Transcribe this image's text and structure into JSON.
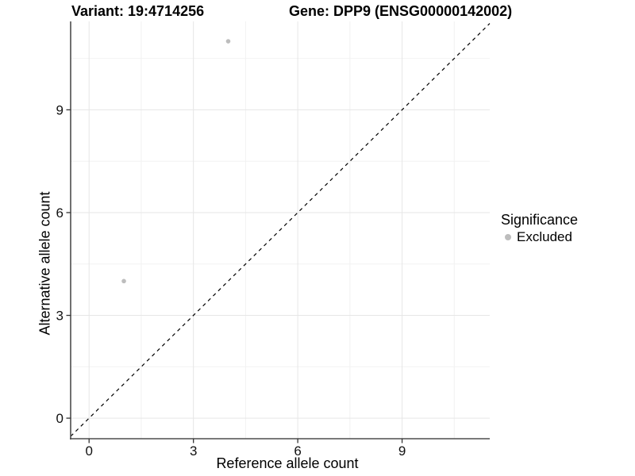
{
  "chart_data": {
    "type": "scatter",
    "titles": {
      "left": "Variant: 19:4714256",
      "right": "Gene: DPP9 (ENSG00000142002)"
    },
    "xlabel": "Reference allele count",
    "ylabel": "Alternative allele count",
    "xlim": [
      -0.53,
      11.52
    ],
    "ylim": [
      -0.6,
      11.58
    ],
    "x_ticks": [
      0,
      3,
      6,
      9
    ],
    "y_ticks": [
      0,
      3,
      6,
      9
    ],
    "x_minor_ticks": [
      1.5,
      4.5,
      7.5,
      10.5
    ],
    "y_minor_ticks": [
      1.5,
      4.5,
      7.5,
      10.5
    ],
    "grid": true,
    "identity_line": {
      "slope": 1,
      "intercept": 0,
      "style": "dashed",
      "color": "#000000"
    },
    "series": [
      {
        "name": "Excluded",
        "color": "#bdbdbd",
        "points": [
          [
            1,
            4
          ],
          [
            4,
            11
          ]
        ]
      }
    ],
    "legend": {
      "title": "Significance",
      "position": "right",
      "entries": [
        {
          "label": "Excluded",
          "color": "#bdbdbd",
          "marker": "point-icon"
        }
      ]
    },
    "colors": {
      "background": "#ffffff",
      "axis_line": "#4d4d4d",
      "tick_mark": "#333333",
      "tick_label": "#111111",
      "grid_major": "#e6e6e6",
      "grid_minor": "#f2f2f2"
    }
  }
}
